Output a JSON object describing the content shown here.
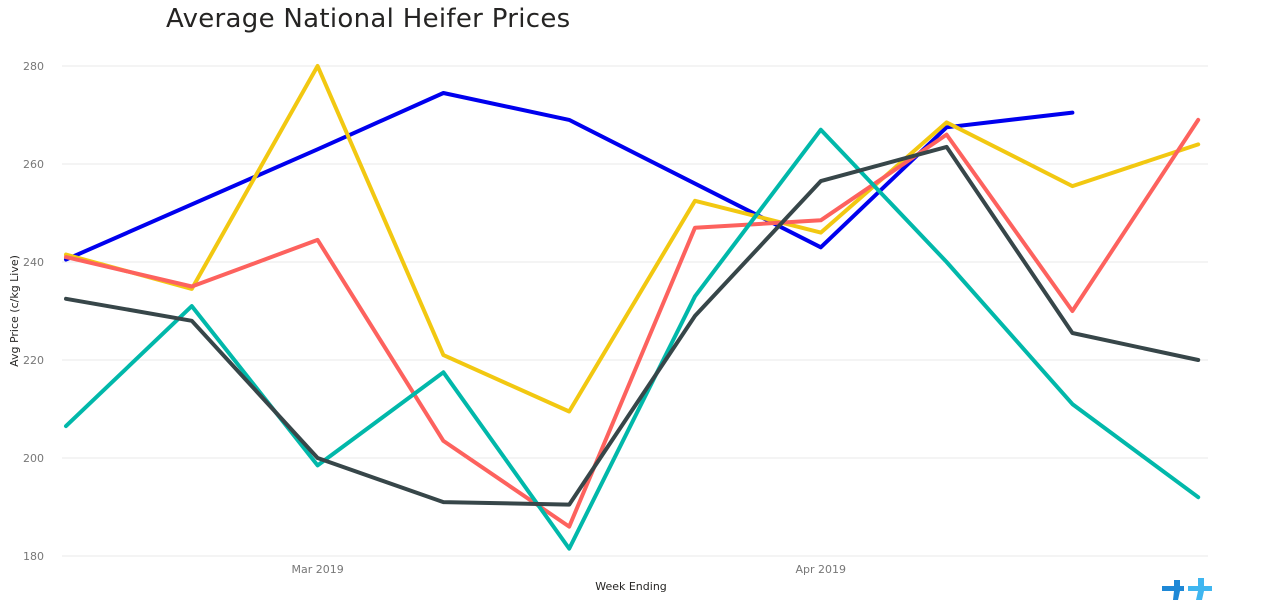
{
  "chart_data": {
    "type": "line",
    "title": "Average National Heifer Prices",
    "xlabel": "Week Ending",
    "ylabel": "Avg Price (c/kg Live)",
    "x": [
      "2019-02-16",
      "2019-02-23",
      "2019-03-02",
      "2019-03-09",
      "2019-03-16",
      "2019-03-23",
      "2019-03-30",
      "2019-04-06",
      "2019-04-13",
      "2019-04-20"
    ],
    "x_tick_labels": [
      {
        "x": "2019-03-02",
        "label": "Mar 2019"
      },
      {
        "x": "2019-03-30",
        "label": "Apr 2019"
      }
    ],
    "ylim": [
      180,
      280
    ],
    "y_ticks": [
      180,
      200,
      220,
      240,
      260,
      280
    ],
    "grid": true,
    "legend": "none",
    "series": [
      {
        "color": "#0000EE",
        "values": [
          240.5,
          null,
          263,
          274.5,
          269,
          null,
          243,
          267.5,
          270.5,
          null
        ]
      },
      {
        "color": "#F2C811",
        "values": [
          241.5,
          234.5,
          280,
          221,
          209.5,
          252.5,
          246,
          268.5,
          255.5,
          264
        ]
      },
      {
        "color": "#FD625E",
        "values": [
          241,
          235,
          244.5,
          203.5,
          186,
          247,
          248.5,
          266,
          230,
          269
        ]
      },
      {
        "color": "#01B8AA",
        "values": [
          206.5,
          231,
          198.5,
          217.5,
          181.5,
          233,
          267,
          240,
          211,
          192
        ]
      },
      {
        "color": "#374649",
        "values": [
          232.5,
          228,
          200,
          191,
          190.5,
          229,
          256.5,
          263.5,
          225.5,
          220
        ]
      }
    ]
  }
}
